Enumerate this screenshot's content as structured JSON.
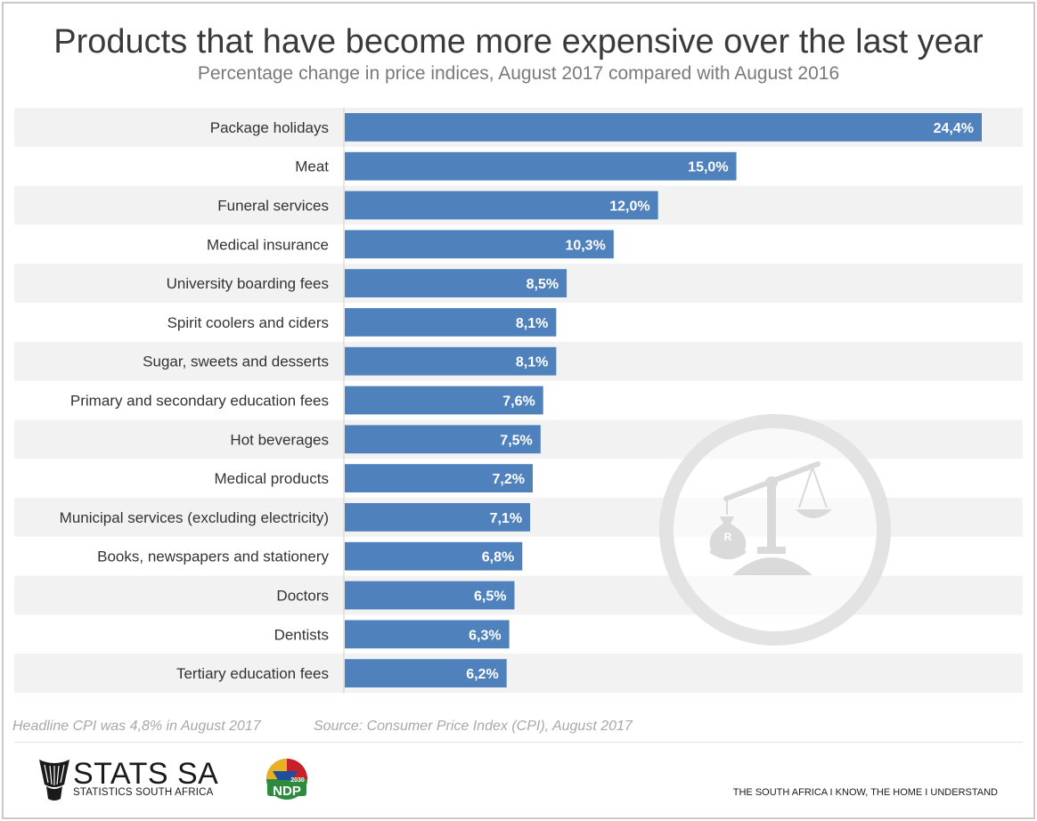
{
  "header": {
    "title": "Products that have become more expensive over the last year",
    "subtitle": "Percentage change in price indices, August 2017 compared with August 2016"
  },
  "chart_data": {
    "type": "bar",
    "orientation": "horizontal",
    "categories": [
      "Package holidays",
      "Meat",
      "Funeral services",
      "Medical insurance",
      "University boarding fees",
      "Spirit coolers and ciders",
      "Sugar, sweets and desserts",
      "Primary and secondary education fees",
      "Hot beverages",
      "Medical products",
      "Municipal services (excluding electricity)",
      "Books, newspapers and stationery",
      "Doctors",
      "Dentists",
      "Tertiary education fees"
    ],
    "values": [
      24.4,
      15.0,
      12.0,
      10.3,
      8.5,
      8.1,
      8.1,
      7.6,
      7.5,
      7.2,
      7.1,
      6.8,
      6.5,
      6.3,
      6.2
    ],
    "value_labels": [
      "24,4%",
      "15,0%",
      "12,0%",
      "10,3%",
      "8,5%",
      "8,1%",
      "8,1%",
      "7,6%",
      "7,5%",
      "7,2%",
      "7,1%",
      "6,8%",
      "6,5%",
      "6,3%",
      "6,2%"
    ],
    "xlim": [
      0,
      24.4
    ],
    "bar_color": "#4f81bd",
    "row_band_color": "#f2f2f2",
    "grid": false,
    "legend": "none"
  },
  "footer": {
    "note": "Headline CPI was 4,8% in August 2017",
    "source": "Source: Consumer Price Index (CPI), August 2017",
    "logo_name": "STATS SA",
    "logo_sub": "STATISTICS SOUTH AFRICA",
    "tagline": "THE SOUTH AFRICA I KNOW, THE HOME I UNDERSTAND",
    "ndp_label": "NDP",
    "ndp_year": "2030"
  },
  "icons": {
    "watermark": "balance-scale-icon",
    "stats_logo": "basket-logo-icon",
    "ndp_logo": "ndp-logo-icon"
  }
}
